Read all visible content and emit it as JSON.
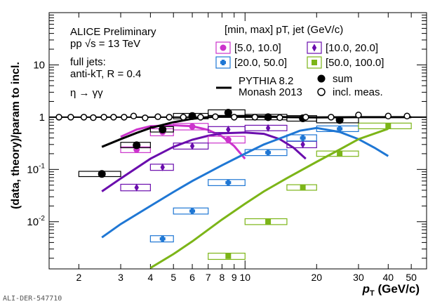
{
  "chart_data": {
    "type": "scatter",
    "title": "",
    "xlabel": "pT (GeV/c)",
    "xlabel_main": "p",
    "xlabel_sub": "T",
    "xlabel_unit": "(GeV/c)",
    "ylabel": "(data, theory)/param to incl.",
    "xscale": "log",
    "yscale": "log",
    "xlim": [
      1.5,
      58
    ],
    "ylim": [
      0.00125,
      100
    ],
    "x_tick_labels": [
      {
        "v": 2,
        "t": "2"
      },
      {
        "v": 3,
        "t": "3"
      },
      {
        "v": 4,
        "t": "4"
      },
      {
        "v": 5,
        "t": "5"
      },
      {
        "v": 6,
        "t": "6"
      },
      {
        "v": 7,
        "t": "7"
      },
      {
        "v": 8,
        "t": "8"
      },
      {
        "v": 9,
        "t": "9"
      },
      {
        "v": 10,
        "t": "10"
      },
      {
        "v": 20,
        "t": "20"
      },
      {
        "v": 30,
        "t": "30"
      },
      {
        "v": 40,
        "t": "40"
      },
      {
        "v": 50,
        "t": "50"
      }
    ],
    "y_tick_labels": [
      {
        "v": 0.01,
        "base": "10",
        "exp": "-2"
      },
      {
        "v": 0.1,
        "base": "10",
        "exp": "-1"
      },
      {
        "v": 1,
        "base": "1",
        "exp": ""
      },
      {
        "v": 10,
        "base": "10",
        "exp": ""
      }
    ],
    "reference_line": 1,
    "annotations": {
      "experiment": "ALICE Preliminary",
      "system": "pp √s = 13 TeV",
      "jets_line1": "full jets:",
      "jets_line2": "anti-kT, R = 0.4",
      "decay": "η → γγ",
      "legend_title": "[min, max] pT, jet (GeV/c)",
      "watermark": "ALI-DER-547710"
    },
    "legend_placement": "top-right",
    "series": [
      {
        "name": "[5.0, 10.0]",
        "color": "#cc33cc",
        "marker": "circle",
        "points": [
          {
            "x": 3.5,
            "y": 0.24,
            "xl": 3.0,
            "xh": 4.0,
            "yl": 0.21,
            "yh": 0.27
          },
          {
            "x": 4.5,
            "y": 0.52,
            "xl": 4.0,
            "xh": 5.0,
            "yl": 0.44,
            "yh": 0.6
          },
          {
            "x": 6.0,
            "y": 0.66,
            "xl": 5.0,
            "xh": 7.0,
            "yl": 0.57,
            "yh": 0.76
          },
          {
            "x": 8.5,
            "y": 0.37,
            "xl": 7.0,
            "xh": 10.0,
            "yl": 0.32,
            "yh": 0.43
          }
        ],
        "curve": [
          [
            3.0,
            0.42
          ],
          [
            3.5,
            0.58
          ],
          [
            4.0,
            0.67
          ],
          [
            5.0,
            0.7
          ],
          [
            6.0,
            0.67
          ],
          [
            7.0,
            0.57
          ],
          [
            8.0,
            0.43
          ],
          [
            9.0,
            0.28
          ],
          [
            10.0,
            0.16
          ]
        ]
      },
      {
        "name": "[10.0, 20.0]",
        "color": "#6a0dad",
        "marker": "diamond",
        "points": [
          {
            "x": 3.5,
            "y": 0.045,
            "xl": 3.0,
            "xh": 4.0,
            "yl": 0.039,
            "yh": 0.052
          },
          {
            "x": 4.5,
            "y": 0.11,
            "xl": 4.0,
            "xh": 5.0,
            "yl": 0.096,
            "yh": 0.126
          },
          {
            "x": 6.0,
            "y": 0.28,
            "xl": 5.0,
            "xh": 7.0,
            "yl": 0.245,
            "yh": 0.32
          },
          {
            "x": 8.5,
            "y": 0.58,
            "xl": 7.0,
            "xh": 10.0,
            "yl": 0.51,
            "yh": 0.66
          },
          {
            "x": 12.5,
            "y": 0.62,
            "xl": 10.0,
            "xh": 15.0,
            "yl": 0.55,
            "yh": 0.7
          },
          {
            "x": 17.5,
            "y": 0.3,
            "xl": 15.0,
            "xh": 20.0,
            "yl": 0.26,
            "yh": 0.345
          }
        ],
        "curve": [
          [
            2.5,
            0.038
          ],
          [
            3.0,
            0.067
          ],
          [
            4.0,
            0.16
          ],
          [
            5.0,
            0.27
          ],
          [
            6.0,
            0.37
          ],
          [
            7.0,
            0.44
          ],
          [
            8.0,
            0.49
          ],
          [
            10.0,
            0.51
          ],
          [
            12.0,
            0.48
          ],
          [
            14.0,
            0.38
          ],
          [
            16.0,
            0.26
          ],
          [
            18.0,
            0.16
          ]
        ]
      },
      {
        "name": "[20.0, 50.0]",
        "color": "#1f77d4",
        "marker": "cross",
        "points": [
          {
            "x": 4.5,
            "y": 0.0047,
            "xl": 4.0,
            "xh": 5.0,
            "yl": 0.0041,
            "yh": 0.0054
          },
          {
            "x": 6.0,
            "y": 0.016,
            "xl": 5.0,
            "xh": 7.0,
            "yl": 0.014,
            "yh": 0.0183
          },
          {
            "x": 8.5,
            "y": 0.056,
            "xl": 7.0,
            "xh": 10.0,
            "yl": 0.049,
            "yh": 0.064
          },
          {
            "x": 12.5,
            "y": 0.21,
            "xl": 10.0,
            "xh": 15.0,
            "yl": 0.184,
            "yh": 0.24
          },
          {
            "x": 17.5,
            "y": 0.4,
            "xl": 15.0,
            "xh": 20.0,
            "yl": 0.35,
            "yh": 0.46
          },
          {
            "x": 25.0,
            "y": 0.6,
            "xl": 20.0,
            "xh": 30.0,
            "yl": 0.53,
            "yh": 0.68
          }
        ],
        "curve": [
          [
            2.5,
            0.005
          ],
          [
            3.0,
            0.009
          ],
          [
            4.0,
            0.02
          ],
          [
            5.0,
            0.037
          ],
          [
            6.0,
            0.06
          ],
          [
            8.0,
            0.12
          ],
          [
            10.0,
            0.2
          ],
          [
            12.0,
            0.3
          ],
          [
            15.0,
            0.44
          ],
          [
            17.0,
            0.55
          ],
          [
            20.0,
            0.62
          ],
          [
            25.0,
            0.52
          ],
          [
            30.0,
            0.38
          ],
          [
            35.0,
            0.26
          ],
          [
            40.0,
            0.18
          ]
        ]
      },
      {
        "name": "[50.0, 100.0]",
        "color": "#7cb518",
        "marker": "square",
        "points": [
          {
            "x": 8.5,
            "y": 0.0022,
            "xl": 7.0,
            "xh": 10.0,
            "yl": 0.0019,
            "yh": 0.0025
          },
          {
            "x": 12.5,
            "y": 0.01,
            "xl": 10.0,
            "xh": 15.0,
            "yl": 0.0088,
            "yh": 0.0114
          },
          {
            "x": 17.5,
            "y": 0.045,
            "xl": 15.0,
            "xh": 20.0,
            "yl": 0.04,
            "yh": 0.051
          },
          {
            "x": 25.0,
            "y": 0.2,
            "xl": 20.0,
            "xh": 30.0,
            "yl": 0.178,
            "yh": 0.225
          },
          {
            "x": 40.0,
            "y": 0.68,
            "xl": 30.0,
            "xh": 50.0,
            "yl": 0.6,
            "yh": 0.77
          }
        ],
        "curve": [
          [
            4.0,
            0.0013
          ],
          [
            5.0,
            0.0024
          ],
          [
            6.0,
            0.0042
          ],
          [
            8.0,
            0.011
          ],
          [
            10.0,
            0.022
          ],
          [
            12.0,
            0.038
          ],
          [
            15.0,
            0.068
          ],
          [
            20.0,
            0.14
          ],
          [
            25.0,
            0.24
          ],
          [
            30.0,
            0.38
          ],
          [
            40.0,
            0.6
          ]
        ]
      },
      {
        "name": "sum",
        "color": "#000000",
        "marker": "filled-circle",
        "points": [
          {
            "x": 2.5,
            "y": 0.082,
            "xl": 2.0,
            "xh": 3.0,
            "yl": 0.073,
            "yh": 0.092
          },
          {
            "x": 3.5,
            "y": 0.29,
            "xl": 3.0,
            "xh": 4.0,
            "yl": 0.26,
            "yh": 0.33
          },
          {
            "x": 4.5,
            "y": 0.58,
            "xl": 4.0,
            "xh": 5.0,
            "yl": 0.52,
            "yh": 0.66
          },
          {
            "x": 6.0,
            "y": 1.05,
            "xl": 5.0,
            "xh": 7.0,
            "yl": 0.93,
            "yh": 1.18
          },
          {
            "x": 8.5,
            "y": 1.22,
            "xl": 7.0,
            "xh": 10.0,
            "yl": 1.08,
            "yh": 1.38
          },
          {
            "x": 12.5,
            "y": 1.0,
            "xl": 10.0,
            "xh": 15.0,
            "yl": 0.89,
            "yh": 1.13
          },
          {
            "x": 17.5,
            "y": 0.95,
            "xl": 15.0,
            "xh": 20.0,
            "yl": 0.84,
            "yh": 1.07
          },
          {
            "x": 25.0,
            "y": 0.88,
            "xl": 20.0,
            "xh": 30.0,
            "yl": 0.78,
            "yh": 0.99
          }
        ]
      },
      {
        "name": "incl. meas.",
        "color": "#000000",
        "marker": "open-circle",
        "points": [
          {
            "x": 1.65,
            "y": 1.0
          },
          {
            "x": 1.85,
            "y": 1.0
          },
          {
            "x": 2.1,
            "y": 1.0
          },
          {
            "x": 2.3,
            "y": 0.98
          },
          {
            "x": 2.55,
            "y": 1.0
          },
          {
            "x": 2.8,
            "y": 1.0
          },
          {
            "x": 3.1,
            "y": 1.0
          },
          {
            "x": 3.4,
            "y": 1.05
          },
          {
            "x": 3.8,
            "y": 0.97
          },
          {
            "x": 4.3,
            "y": 1.02
          },
          {
            "x": 4.8,
            "y": 1.0
          },
          {
            "x": 5.5,
            "y": 1.0
          },
          {
            "x": 6.5,
            "y": 1.0
          },
          {
            "x": 7.5,
            "y": 1.02
          },
          {
            "x": 9.0,
            "y": 1.0
          },
          {
            "x": 11.0,
            "y": 1.0
          },
          {
            "x": 14.0,
            "y": 0.98
          },
          {
            "x": 18.0,
            "y": 1.0
          },
          {
            "x": 23.0,
            "y": 1.0
          },
          {
            "x": 30.0,
            "y": 1.1
          },
          {
            "x": 40.0,
            "y": 1.05
          },
          {
            "x": 48.0,
            "y": 1.05
          }
        ]
      },
      {
        "name": "PYTHIA 8.2 Monash 2013",
        "name_line1": "PYTHIA 8.2",
        "name_line2": "Monash 2013",
        "color": "#000000",
        "marker": "line",
        "curve": [
          [
            2.5,
            0.27
          ],
          [
            3.0,
            0.38
          ],
          [
            3.5,
            0.5
          ],
          [
            4.0,
            0.62
          ],
          [
            5.0,
            0.8
          ],
          [
            6.0,
            0.93
          ],
          [
            7.0,
            1.0
          ],
          [
            8.0,
            1.03
          ],
          [
            10.0,
            1.05
          ],
          [
            12.0,
            1.03
          ],
          [
            15.0,
            1.0
          ],
          [
            20.0,
            0.99
          ],
          [
            30.0,
            1.0
          ],
          [
            40.0,
            1.0
          ],
          [
            50.0,
            1.0
          ]
        ]
      }
    ]
  }
}
